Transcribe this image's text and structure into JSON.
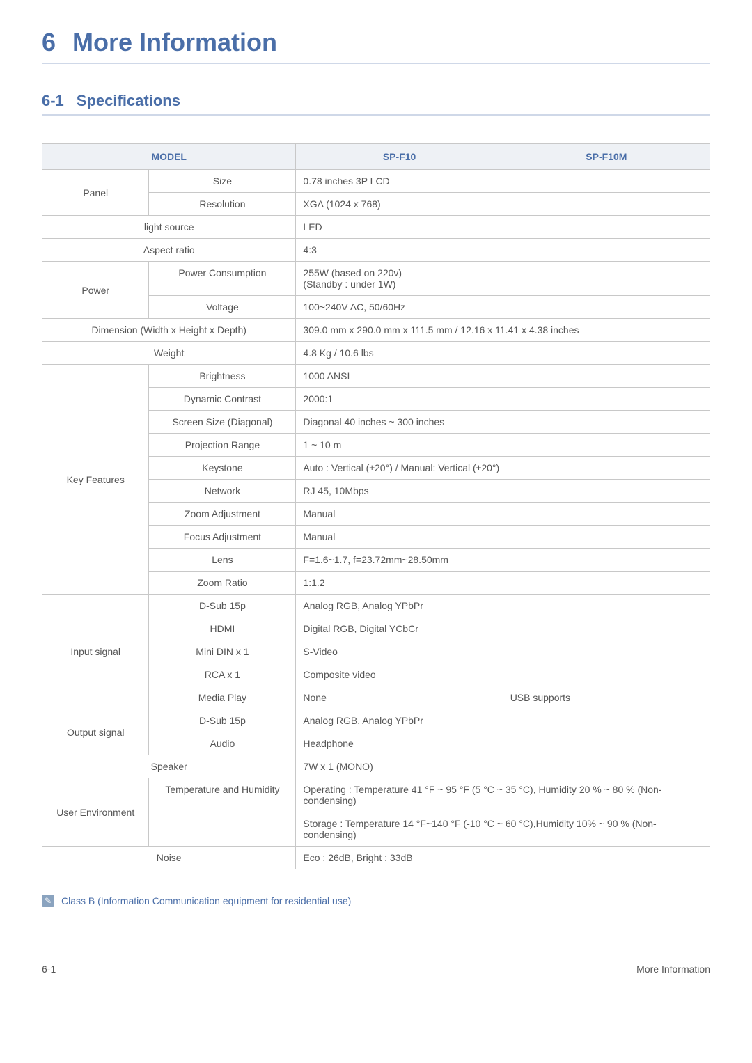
{
  "chapter": {
    "num": "6",
    "title": "More Information"
  },
  "section": {
    "num": "6-1",
    "title": "Specifications"
  },
  "table": {
    "header": {
      "model": "MODEL",
      "col_a": "SP-F10",
      "col_b": "SP-F10M"
    },
    "panel": {
      "cat": "Panel",
      "size_label": "Size",
      "size_val": "0.78 inches 3P LCD",
      "res_label": "Resolution",
      "res_val": "XGA (1024 x 768)"
    },
    "light_source": {
      "label": "light source",
      "val": "LED"
    },
    "aspect": {
      "label": "Aspect ratio",
      "val": "4:3"
    },
    "power": {
      "cat": "Power",
      "pc_label": "Power Consumption",
      "pc_val1": "255W (based on 220v)",
      "pc_val2": "(Standby : under 1W)",
      "volt_label": "Voltage",
      "volt_val": "100~240V AC, 50/60Hz"
    },
    "dim": {
      "label": "Dimension (Width x Height x Depth)",
      "val": "309.0 mm x 290.0 mm x 111.5 mm / 12.16 x 11.41 x 4.38 inches"
    },
    "weight": {
      "label": "Weight",
      "val": "4.8 Kg / 10.6 lbs"
    },
    "key": {
      "cat": "Key Features",
      "brightness_label": "Brightness",
      "brightness_val": "1000 ANSI",
      "contrast_label": "Dynamic Contrast",
      "contrast_val": "2000:1",
      "screen_label": "Screen Size (Diagonal)",
      "screen_val": "Diagonal 40 inches ~ 300 inches",
      "proj_label": "Projection Range",
      "proj_val": "1 ~ 10 m",
      "keystone_label": "Keystone",
      "keystone_val": "Auto : Vertical (±20°) / Manual: Vertical (±20°)",
      "network_label": "Network",
      "network_val": "RJ 45, 10Mbps",
      "zoom_label": "Zoom Adjustment",
      "zoom_val": "Manual",
      "focus_label": "Focus Adjustment",
      "focus_val": "Manual",
      "lens_label": "Lens",
      "lens_val": "F=1.6~1.7, f=23.72mm~28.50mm",
      "zratio_label": "Zoom Ratio",
      "zratio_val": "1:1.2"
    },
    "input": {
      "cat": "Input signal",
      "dsub_label": "D-Sub 15p",
      "dsub_val": "Analog RGB, Analog YPbPr",
      "hdmi_label": "HDMI",
      "hdmi_val": "Digital RGB, Digital YCbCr",
      "mini_label": "Mini DIN x 1",
      "mini_val": "S-Video",
      "rca_label": "RCA x 1",
      "rca_val": "Composite video",
      "media_label": "Media Play",
      "media_a": "None",
      "media_b": "USB supports"
    },
    "output": {
      "cat": "Output signal",
      "dsub_label": "D-Sub 15p",
      "dsub_val": "Analog RGB, Analog YPbPr",
      "audio_label": "Audio",
      "audio_val": "Headphone"
    },
    "speaker": {
      "label": "Speaker",
      "val": "7W x 1 (MONO)"
    },
    "env": {
      "cat": "User Environment",
      "th_label": "Temperature and Humidity",
      "th_val1": "Operating : Temperature 41 °F ~ 95 °F (5 °C ~ 35 °C), Humidity 20 % ~ 80 % (Non-condensing)",
      "th_val2": "Storage : Temperature 14 °F~140 °F (-10 °C ~ 60 °C),Humidity 10% ~ 90 % (Non-condensing)"
    },
    "noise": {
      "label": "Noise",
      "val": "Eco : 26dB, Bright : 33dB"
    }
  },
  "note": "Class B (Information Communication equipment for residential use)",
  "footer": {
    "left": "6-1",
    "right": "More Information"
  },
  "colors": {
    "accent": "#4a6ea8",
    "border": "#c8c8c8",
    "header_bg": "#eef1f5",
    "underline": "#cfd8e8",
    "text": "#555555"
  }
}
